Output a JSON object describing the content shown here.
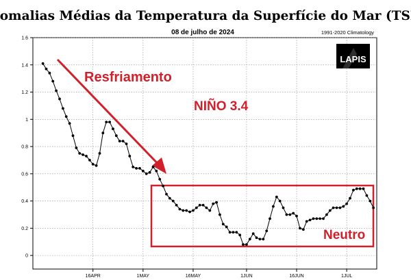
{
  "chart_data": {
    "type": "line",
    "title": "Anomalias Médias da Temperatura da Superfície do Mar (TSM)",
    "subtitle": "08 de julho de 2024",
    "climatology": "1991-2020 Climatology",
    "logo": "LAPIS",
    "region_label": "NIÑO 3.4",
    "annotations": {
      "cooling": "Resfriamento",
      "neutral": "Neutro"
    },
    "ylim": [
      -0.1,
      1.6
    ],
    "yticks": [
      "0",
      "0.2",
      "0.4",
      "0.6",
      "0.8",
      "1",
      "1.2",
      "1.4",
      "1.6"
    ],
    "xticks": [
      {
        "label": "16APR",
        "day": 15
      },
      {
        "label": "1MAY",
        "day": 30
      },
      {
        "label": "16MAY",
        "day": 45
      },
      {
        "label": "1JUN",
        "day": 61
      },
      {
        "label": "16JUN",
        "day": 76
      },
      {
        "label": "1JUL",
        "day": 91
      }
    ],
    "xlim_days": [
      -3,
      100
    ],
    "grid": true,
    "colors": {
      "line": "#000000",
      "annotation": "#d0202a"
    },
    "series": [
      {
        "start_date": "2024-04-01",
        "values": [
          1.41,
          1.37,
          1.34,
          1.28,
          1.21,
          1.15,
          1.08,
          1.02,
          0.97,
          0.88,
          0.79,
          0.75,
          0.74,
          0.73,
          0.7,
          0.67,
          0.66,
          0.75,
          0.9,
          0.98,
          0.98,
          0.93,
          0.88,
          0.84,
          0.84,
          0.82,
          0.73,
          0.65,
          0.64,
          0.64,
          0.62,
          0.6,
          0.61,
          0.65,
          0.62,
          0.56,
          0.51,
          0.45,
          0.42,
          0.4,
          0.37,
          0.34,
          0.33,
          0.33,
          0.32,
          0.33,
          0.35,
          0.37,
          0.37,
          0.35,
          0.33,
          0.38,
          0.39,
          0.3,
          0.23,
          0.21,
          0.17,
          0.17,
          0.17,
          0.15,
          0.08,
          0.08,
          0.12,
          0.16,
          0.13,
          0.12,
          0.12,
          0.18,
          0.27,
          0.36,
          0.43,
          0.4,
          0.35,
          0.3,
          0.3,
          0.31,
          0.29,
          0.2,
          0.19,
          0.25,
          0.26,
          0.27,
          0.27,
          0.27,
          0.27,
          0.3,
          0.33,
          0.35,
          0.35,
          0.35,
          0.36,
          0.38,
          0.42,
          0.48,
          0.49,
          0.49,
          0.49,
          0.44,
          0.4,
          0.35
        ]
      }
    ]
  }
}
